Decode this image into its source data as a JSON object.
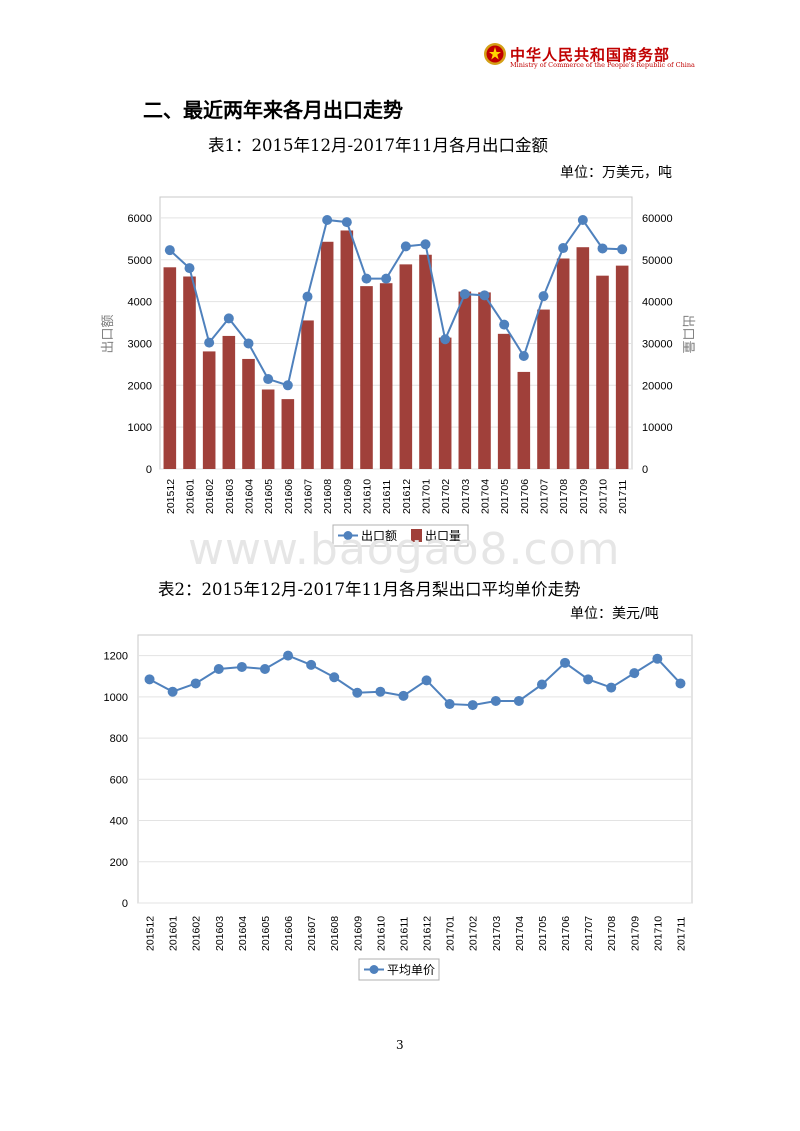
{
  "header": {
    "org_name_cn": "中华人民共和国商务部",
    "org_name_en": "Ministry of Commerce of the People's Republic of China",
    "logo_icon": "national-emblem-icon"
  },
  "section_heading": "二、最近两年来各月出口走势",
  "table1": {
    "title": "表1：2015年12月-2017年11月各月出口金额",
    "unit": "单位：万美元，吨"
  },
  "table2": {
    "title": "表2：2015年12月-2017年11月各月梨出口平均单价走势",
    "unit": "单位：美元/吨"
  },
  "watermark": "www.baogao8.com",
  "page_number": "3",
  "chart_data": [
    {
      "type": "bar+line",
      "categories": [
        "201512",
        "201601",
        "201602",
        "201603",
        "201604",
        "201605",
        "201606",
        "201607",
        "201608",
        "201609",
        "201610",
        "201611",
        "201612",
        "201701",
        "201702",
        "201703",
        "201704",
        "201705",
        "201706",
        "201707",
        "201708",
        "201709",
        "201710",
        "201711"
      ],
      "ylabel": "出口额",
      "y2label": "出口量",
      "ylim": [
        0,
        6500
      ],
      "y2lim": [
        0,
        65000
      ],
      "yticks": [
        "0",
        "1000",
        "2000",
        "3000",
        "4000",
        "5000",
        "6000"
      ],
      "y2ticks": [
        "0",
        "10000",
        "20000",
        "30000",
        "40000",
        "50000",
        "60000"
      ],
      "grid": true,
      "legend_position": "bottom",
      "series": [
        {
          "name": "出口额",
          "kind": "line",
          "axis": "left",
          "color": "#4f81bd",
          "values": [
            5230,
            4800,
            3020,
            3600,
            3000,
            2150,
            2000,
            4120,
            5950,
            5900,
            4550,
            4550,
            5320,
            5370,
            3100,
            4180,
            4150,
            3450,
            2700,
            4130,
            5280,
            5950,
            5270,
            5250
          ]
        },
        {
          "name": "出口量",
          "kind": "bar",
          "axis": "right",
          "color": "#a0403a",
          "values": [
            48200,
            46000,
            28100,
            31800,
            26300,
            19000,
            16700,
            35500,
            54300,
            57000,
            43700,
            44400,
            48900,
            51200,
            31400,
            42400,
            42200,
            32300,
            23200,
            38100,
            50300,
            53000,
            46200,
            48600
          ]
        }
      ]
    },
    {
      "type": "line",
      "categories": [
        "201512",
        "201601",
        "201602",
        "201603",
        "201604",
        "201605",
        "201606",
        "201607",
        "201608",
        "201609",
        "201610",
        "201611",
        "201612",
        "201701",
        "201702",
        "201703",
        "201704",
        "201705",
        "201706",
        "201707",
        "201708",
        "201709",
        "201710",
        "201711"
      ],
      "ylim": [
        0,
        1300
      ],
      "yticks": [
        "0",
        "200",
        "400",
        "600",
        "800",
        "1000",
        "1200"
      ],
      "grid": true,
      "legend_position": "bottom",
      "series": [
        {
          "name": "平均单价",
          "color": "#4f81bd",
          "values": [
            1085,
            1025,
            1065,
            1135,
            1145,
            1135,
            1200,
            1155,
            1095,
            1020,
            1025,
            1005,
            1080,
            965,
            960,
            980,
            980,
            1060,
            1165,
            1085,
            1045,
            1115,
            1185,
            1065
          ]
        }
      ]
    }
  ]
}
